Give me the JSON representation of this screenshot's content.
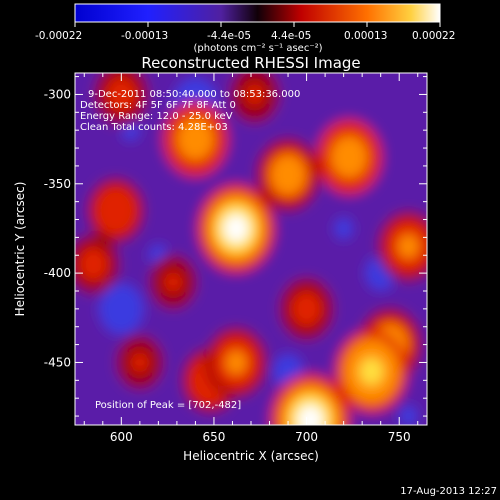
{
  "chart_data": {
    "type": "heatmap",
    "title": "Reconstructed RHESSI Image",
    "xlabel": "Heliocentric X (arcsec)",
    "ylabel": "Heliocentric Y (arcsec)",
    "colorbar": {
      "ticks": [
        "-0.00022",
        "-0.00013",
        "-4.4e-05",
        "4.4e-05",
        "0.00013",
        "0.00022"
      ],
      "range": [
        -0.00022,
        0.00022
      ],
      "units": "(photons cm⁻² s⁻¹ asec⁻²)"
    },
    "x_ticks": [
      "600",
      "650",
      "700",
      "750"
    ],
    "y_ticks": [
      "-300",
      "-350",
      "-400",
      "-450"
    ],
    "xlim": [
      575,
      765
    ],
    "ylim": [
      -485,
      -288
    ],
    "annotations": [
      "9-Dec-2011 08:50:40.000 to 08:53:36.000",
      "Detectors: 4F 5F 6F 7F 8F  Att 0",
      "Energy Range: 12.0 - 25.0 keV",
      "Clean    Total counts: 4.28E+03"
    ],
    "peak_label": "Position of Peak = [702,-482]",
    "peak": [
      702,
      -482
    ],
    "timestamp": "17-Aug-2013 12:27",
    "sources": [
      {
        "x": 662,
        "y": -375,
        "value": 0.00021
      },
      {
        "x": 702,
        "y": -482,
        "value": 0.00022
      },
      {
        "x": 640,
        "y": -325,
        "value": 0.00016
      },
      {
        "x": 690,
        "y": -345,
        "value": 0.00015
      },
      {
        "x": 723,
        "y": -335,
        "value": 0.00016
      },
      {
        "x": 597,
        "y": -365,
        "value": 0.00012
      },
      {
        "x": 585,
        "y": -395,
        "value": 0.0001
      },
      {
        "x": 735,
        "y": -455,
        "value": 0.00019
      },
      {
        "x": 628,
        "y": -405,
        "value": 8e-05
      },
      {
        "x": 610,
        "y": -450,
        "value": 8e-05
      },
      {
        "x": 662,
        "y": -450,
        "value": 0.00014
      },
      {
        "x": 648,
        "y": -460,
        "value": 0.00012
      },
      {
        "x": 755,
        "y": -385,
        "value": 0.00014
      },
      {
        "x": 745,
        "y": -440,
        "value": 0.00015
      },
      {
        "x": 700,
        "y": -420,
        "value": 0.00011
      },
      {
        "x": 600,
        "y": -300,
        "value": 0.00011
      },
      {
        "x": 672,
        "y": -300,
        "value": 9e-05
      },
      {
        "x": 640,
        "y": -305,
        "value": -0.00012
      },
      {
        "x": 605,
        "y": -320,
        "value": -8e-05
      },
      {
        "x": 720,
        "y": -375,
        "value": -9e-05
      },
      {
        "x": 740,
        "y": -400,
        "value": -0.0001
      },
      {
        "x": 600,
        "y": -420,
        "value": -0.00012
      },
      {
        "x": 620,
        "y": -390,
        "value": -9e-05
      },
      {
        "x": 690,
        "y": -455,
        "value": -0.0001
      },
      {
        "x": 755,
        "y": -480,
        "value": -8e-05
      },
      {
        "x": 760,
        "y": -320,
        "value": -6e-05
      },
      {
        "x": 670,
        "y": -470,
        "value": -5e-05
      }
    ],
    "background": -7e-05
  }
}
